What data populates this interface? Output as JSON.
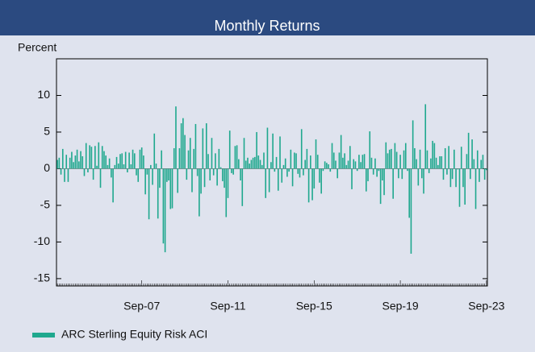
{
  "chart_data": {
    "type": "bar",
    "title": "Monthly Returns",
    "y_axis_label": "Percent",
    "categories": [
      null,
      null,
      null,
      null,
      null,
      null,
      null,
      null,
      null,
      null,
      null,
      null,
      null,
      null,
      null,
      null,
      null,
      null,
      null,
      null,
      null,
      null,
      null,
      null,
      null,
      null,
      null,
      null,
      null,
      null,
      null,
      null,
      null,
      null,
      null,
      null,
      null,
      null,
      null,
      null,
      null,
      null,
      null,
      null,
      null,
      null,
      null,
      "Sep-07",
      null,
      null,
      null,
      null,
      null,
      null,
      null,
      null,
      null,
      null,
      null,
      null,
      null,
      null,
      null,
      null,
      null,
      null,
      null,
      null,
      null,
      null,
      null,
      null,
      null,
      null,
      null,
      null,
      null,
      null,
      null,
      null,
      null,
      null,
      null,
      null,
      null,
      null,
      null,
      null,
      null,
      null,
      null,
      null,
      null,
      null,
      null,
      "Sep-11",
      null,
      null,
      null,
      null,
      null,
      null,
      null,
      null,
      null,
      null,
      null,
      null,
      null,
      null,
      null,
      null,
      null,
      null,
      null,
      null,
      null,
      null,
      null,
      null,
      null,
      null,
      null,
      null,
      null,
      null,
      null,
      null,
      null,
      null,
      null,
      null,
      null,
      null,
      null,
      null,
      null,
      null,
      null,
      null,
      null,
      null,
      null,
      "Sep-15",
      null,
      null,
      null,
      null,
      null,
      null,
      null,
      null,
      null,
      null,
      null,
      null,
      null,
      null,
      null,
      null,
      null,
      null,
      null,
      null,
      null,
      null,
      null,
      null,
      null,
      null,
      null,
      null,
      null,
      null,
      null,
      null,
      null,
      null,
      null,
      null,
      null,
      null,
      null,
      null,
      null,
      null,
      null,
      null,
      null,
      null,
      null,
      "Sep-19",
      null,
      null,
      null,
      null,
      null,
      null,
      null,
      null,
      null,
      null,
      null,
      null,
      null,
      null,
      null,
      null,
      null,
      null,
      null,
      null,
      null,
      null,
      null,
      null,
      null,
      null,
      null,
      null,
      null,
      null,
      null,
      null,
      null,
      null,
      null,
      null,
      null,
      null,
      null,
      null,
      null,
      null,
      null,
      null,
      null,
      null,
      null,
      "Sep-23"
    ],
    "series": [
      {
        "name": "ARC Sterling Equity Risk ACI",
        "color": "#1fa88e",
        "values": [
          1.2,
          1.5,
          -0.8,
          2.7,
          -1.8,
          1.9,
          -1.8,
          1.5,
          2.3,
          0.9,
          1.8,
          2.6,
          1.0,
          2.4,
          1.7,
          -1.0,
          3.5,
          -0.5,
          3.2,
          3.0,
          -1.5,
          3.1,
          0.4,
          3.6,
          -2.6,
          3.1,
          2.4,
          1.8,
          0.5,
          1.4,
          -1.2,
          -4.6,
          0.5,
          1.6,
          0.7,
          2.0,
          2.1,
          0.6,
          2.3,
          -0.5,
          2.2,
          0.6,
          2.6,
          2.1,
          -0.9,
          -1.8,
          2.6,
          2.9,
          1.8,
          -3.5,
          -0.8,
          -6.9,
          0.5,
          -2.2,
          4.8,
          0.7,
          -6.8,
          -2.6,
          2.5,
          -10.2,
          -11.4,
          -1.8,
          -1.6,
          -5.5,
          -5.4,
          2.8,
          8.5,
          -3.3,
          2.8,
          6.2,
          6.9,
          4.6,
          -1.5,
          2.5,
          4.2,
          -3.2,
          2.7,
          6.1,
          -1.0,
          -6.5,
          -3.4,
          5.5,
          -2.5,
          6.2,
          2.0,
          -1.6,
          4.2,
          -0.9,
          2.1,
          -2.3,
          2.7,
          0.2,
          -1.7,
          -2.6,
          -6.6,
          -4.0,
          5.2,
          -0.6,
          -0.8,
          3.1,
          3.2,
          1.3,
          -1.6,
          -5.1,
          4.2,
          1.1,
          1.5,
          0.7,
          1.2,
          1.5,
          1.6,
          5.0,
          1.8,
          1.2,
          0.5,
          2.2,
          -4.0,
          5.6,
          -3.2,
          0.9,
          4.8,
          -0.4,
          1.6,
          -3.0,
          4.4,
          -1.9,
          0.5,
          1.4,
          -1.1,
          -0.4,
          2.6,
          -2.4,
          2.2,
          2.1,
          -0.7,
          -1.2,
          5.4,
          -0.9,
          1.2,
          2.7,
          -4.6,
          1.8,
          -4.3,
          -2.7,
          4.0,
          1.9,
          -1.9,
          -3.4,
          -0.3,
          1.0,
          0.8,
          0.6,
          -0.4,
          3.5,
          2.2,
          1.1,
          -1.3,
          2.2,
          4.6,
          1.5,
          2.1,
          0.5,
          1.1,
          3.1,
          -2.8,
          1.3,
          1.0,
          -0.3,
          1.9,
          0.9,
          1.9,
          2.0,
          -3.1,
          -1.7,
          5.1,
          1.5,
          -0.8,
          1.4,
          -1.1,
          -0.3,
          -4.8,
          -1.6,
          -3.6,
          3.6,
          2.1,
          2.6,
          2.7,
          -4.1,
          3.5,
          2.3,
          -1.3,
          1.9,
          -1.4,
          2.5,
          3.5,
          -0.3,
          -6.7,
          -11.6,
          6.6,
          2.8,
          1.3,
          -2.3,
          2.6,
          -1.3,
          -3.4,
          8.8,
          2.5,
          -0.6,
          1.4,
          3.8,
          3.5,
          1.5,
          0.5,
          1.7,
          1.7,
          -1.5,
          2.8,
          -0.8,
          3.1,
          -2.5,
          -1.4,
          2.6,
          -2.5,
          -0.1,
          -5.2,
          3.0,
          -2.5,
          -4.9,
          2.0,
          4.9,
          -1.4,
          4.0,
          1.3,
          -5.5,
          2.5,
          -1.8,
          1.2,
          1.9,
          -1.5,
          -0.2
        ]
      }
    ],
    "ylim": [
      -16,
      15
    ],
    "yticks": [
      -15,
      -10,
      -5,
      0,
      5,
      10
    ],
    "grid": false,
    "legend": "bottom-left"
  }
}
